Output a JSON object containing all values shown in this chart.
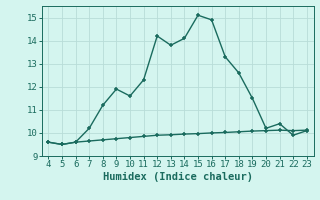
{
  "title": "",
  "xlabel": "Humidex (Indice chaleur)",
  "ylabel": "",
  "x_values": [
    4,
    5,
    6,
    7,
    8,
    9,
    10,
    11,
    12,
    13,
    14,
    15,
    16,
    17,
    18,
    19,
    20,
    21,
    22,
    23
  ],
  "y_line1": [
    9.6,
    9.5,
    9.6,
    10.2,
    11.2,
    11.9,
    11.6,
    12.3,
    14.2,
    13.8,
    14.1,
    15.1,
    14.9,
    13.3,
    12.6,
    11.5,
    10.2,
    10.4,
    9.9,
    10.1
  ],
  "y_line2": [
    9.6,
    9.5,
    9.6,
    9.65,
    9.7,
    9.75,
    9.8,
    9.85,
    9.9,
    9.92,
    9.95,
    9.97,
    10.0,
    10.02,
    10.05,
    10.08,
    10.1,
    10.12,
    10.1,
    10.12
  ],
  "line_color": "#1a6b5e",
  "bg_color": "#d4f5ef",
  "grid_color": "#b8ddd8",
  "ylim": [
    9.0,
    15.5
  ],
  "xlim": [
    3.5,
    23.5
  ],
  "yticks": [
    9,
    10,
    11,
    12,
    13,
    14,
    15
  ],
  "xticks": [
    4,
    5,
    6,
    7,
    8,
    9,
    10,
    11,
    12,
    13,
    14,
    15,
    16,
    17,
    18,
    19,
    20,
    21,
    22,
    23
  ],
  "markersize": 3.5,
  "linewidth": 1.0,
  "tick_fontsize": 6.5,
  "xlabel_fontsize": 7.5
}
